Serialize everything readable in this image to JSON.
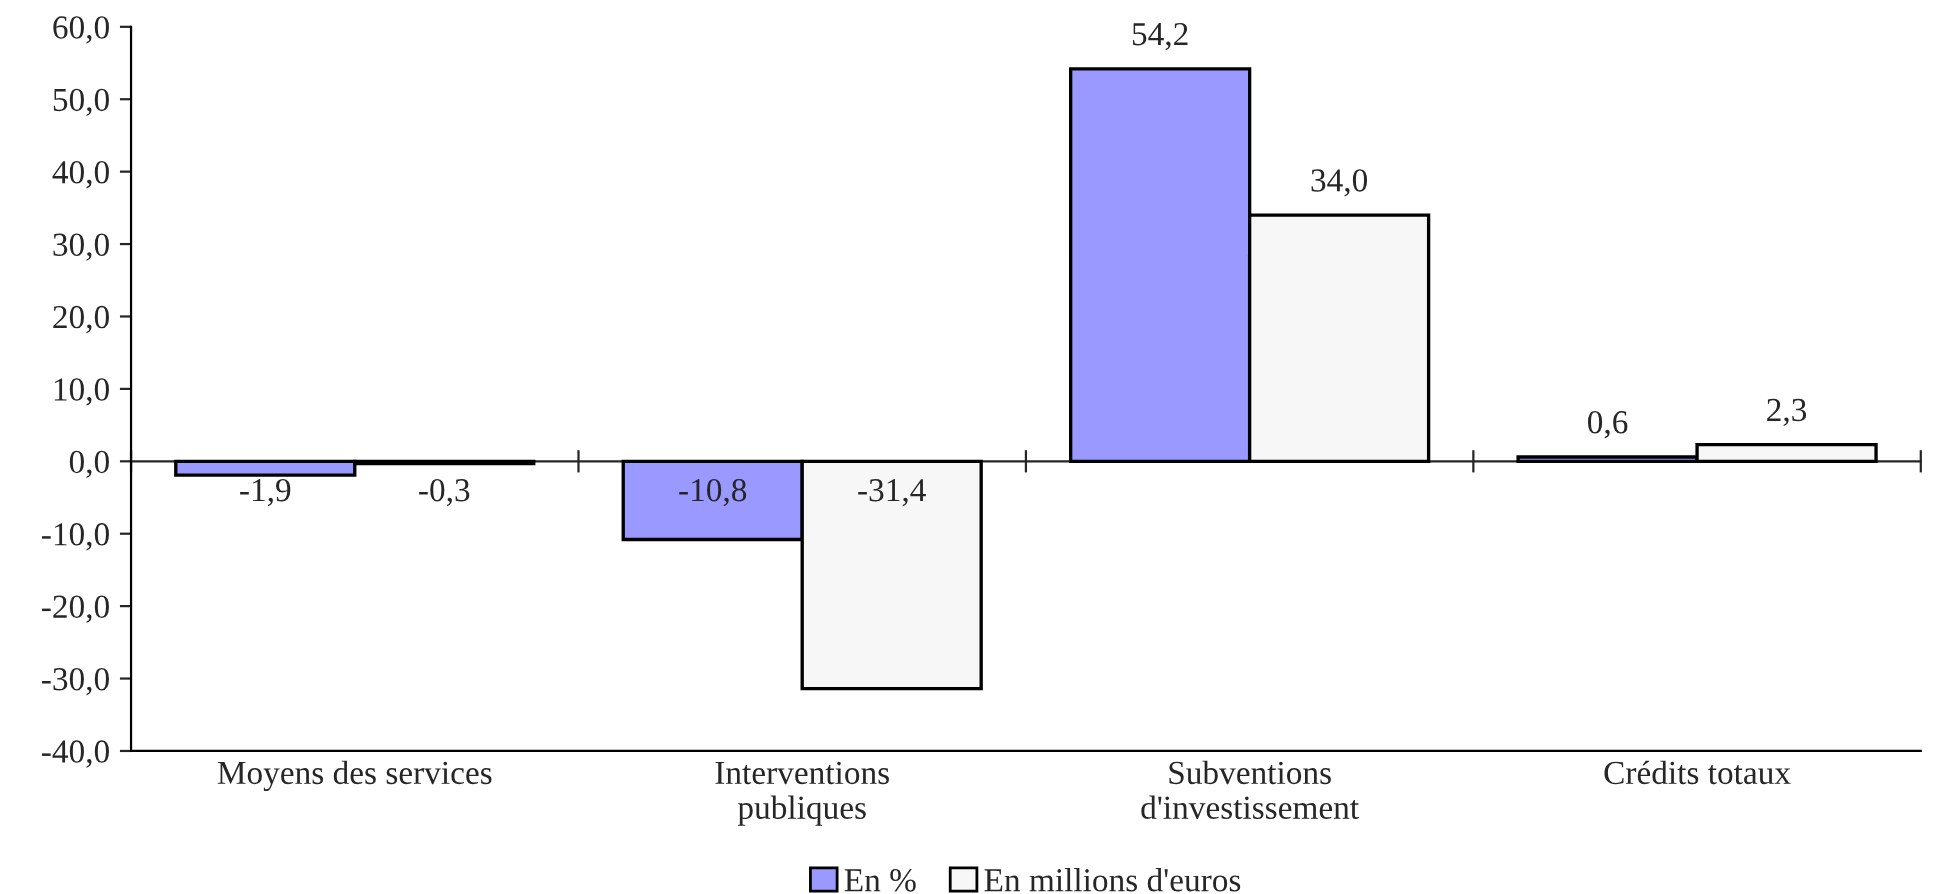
{
  "chart_data": {
    "type": "bar",
    "categories": [
      "Moyens des services",
      "Interventions\npubliques",
      "Subventions\nd'investissement",
      "Crédits totaux"
    ],
    "series": [
      {
        "name": "En %",
        "color": "#9999ff",
        "values": [
          -1.9,
          -10.8,
          54.2,
          0.6
        ],
        "value_labels": [
          "-1,9",
          "-10,8",
          "54,2",
          "0,6"
        ]
      },
      {
        "name": "En millions d'euros",
        "color": "#f7f7f7",
        "values": [
          -0.3,
          -31.4,
          34.0,
          2.3
        ],
        "value_labels": [
          "-0,3",
          "-31,4",
          "34,0",
          "2,3"
        ]
      }
    ],
    "ylim": [
      -40,
      60
    ],
    "yticks": [
      {
        "value": -40,
        "label": "-40,0"
      },
      {
        "value": -30,
        "label": "-30,0"
      },
      {
        "value": -20,
        "label": "-20,0"
      },
      {
        "value": -10,
        "label": "-10,0"
      },
      {
        "value": 0,
        "label": "0,0"
      },
      {
        "value": 10,
        "label": "10,0"
      },
      {
        "value": 20,
        "label": "20,0"
      },
      {
        "value": 30,
        "label": "30,0"
      },
      {
        "value": 40,
        "label": "40,0"
      },
      {
        "value": 50,
        "label": "50,0"
      },
      {
        "value": 60,
        "label": "60,0"
      }
    ],
    "legend": "bottom"
  }
}
